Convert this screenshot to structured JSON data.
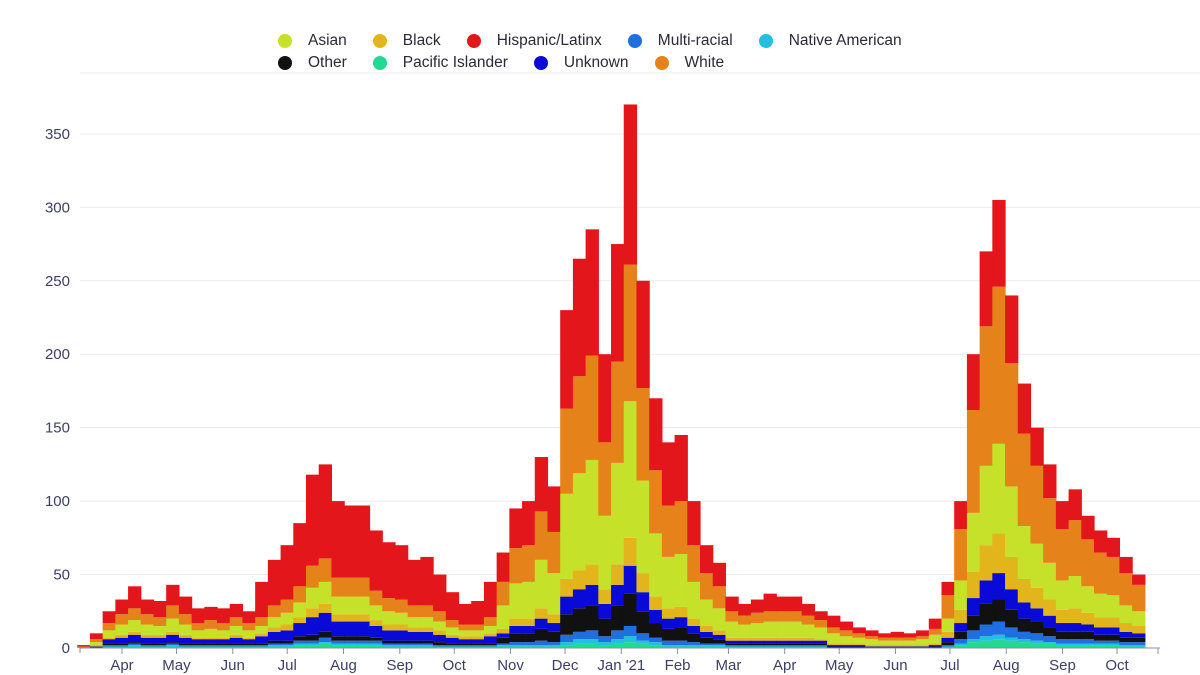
{
  "chart_data": {
    "type": "bar",
    "stacked": true,
    "title": "",
    "xlabel": "",
    "ylabel": "",
    "ylim": [
      0,
      380
    ],
    "yticks": [
      0,
      50,
      100,
      150,
      200,
      250,
      300,
      350
    ],
    "grid": true,
    "legend_position": "top-center",
    "x_start": "2020-03-11",
    "x_interval_days": 7,
    "xticks": [
      {
        "label": "Apr",
        "day": 21
      },
      {
        "label": "May",
        "day": 51
      },
      {
        "label": "Jun",
        "day": 82
      },
      {
        "label": "Jul",
        "day": 112
      },
      {
        "label": "Aug",
        "day": 143
      },
      {
        "label": "Sep",
        "day": 174
      },
      {
        "label": "Oct",
        "day": 204
      },
      {
        "label": "Nov",
        "day": 235
      },
      {
        "label": "Dec",
        "day": 265
      },
      {
        "label": "Jan '21",
        "day": 296
      },
      {
        "label": "Feb",
        "day": 327
      },
      {
        "label": "Mar",
        "day": 355
      },
      {
        "label": "Apr",
        "day": 386
      },
      {
        "label": "May",
        "day": 416
      },
      {
        "label": "Jun",
        "day": 447
      },
      {
        "label": "Jul",
        "day": 477
      },
      {
        "label": "Aug",
        "day": 508
      },
      {
        "label": "Sep",
        "day": 539
      },
      {
        "label": "Oct",
        "day": 569
      }
    ],
    "legend": [
      "Asian",
      "Black",
      "Hispanic/Latinx",
      "Multi-racial",
      "Native American",
      "Other",
      "Pacific Islander",
      "Unknown",
      "White"
    ],
    "series": [
      {
        "name": "Pacific Islander",
        "color": "#22d98f",
        "values": [
          0,
          0,
          1,
          1,
          1,
          1,
          1,
          1,
          1,
          1,
          1,
          1,
          1,
          1,
          1,
          1,
          1,
          2,
          2,
          3,
          2,
          2,
          2,
          2,
          1,
          1,
          1,
          1,
          1,
          1,
          1,
          1,
          1,
          1,
          1,
          1,
          1,
          1,
          2,
          3,
          3,
          2,
          3,
          4,
          3,
          2,
          1,
          1,
          1,
          1,
          1,
          1,
          1,
          1,
          1,
          1,
          1,
          1,
          1,
          0,
          0,
          0,
          0,
          0,
          0,
          0,
          0,
          0,
          1,
          2,
          4,
          5,
          6,
          5,
          4,
          3,
          3,
          2,
          2,
          2,
          2,
          2,
          1,
          1
        ]
      },
      {
        "name": "Native American",
        "color": "#21c0de",
        "values": [
          0,
          0,
          0,
          0,
          1,
          0,
          0,
          1,
          0,
          0,
          0,
          0,
          0,
          0,
          0,
          1,
          1,
          1,
          1,
          1,
          1,
          1,
          1,
          1,
          1,
          1,
          1,
          1,
          0,
          0,
          0,
          0,
          0,
          1,
          1,
          1,
          1,
          1,
          2,
          3,
          3,
          2,
          3,
          4,
          2,
          2,
          1,
          1,
          1,
          1,
          1,
          0,
          0,
          0,
          0,
          0,
          0,
          0,
          0,
          0,
          0,
          0,
          0,
          0,
          0,
          0,
          0,
          0,
          0,
          1,
          2,
          3,
          3,
          2,
          2,
          2,
          1,
          1,
          1,
          1,
          1,
          1,
          1,
          1
        ]
      },
      {
        "name": "Multi-racial",
        "color": "#1f6fe0",
        "values": [
          0,
          0,
          1,
          1,
          1,
          1,
          1,
          1,
          1,
          1,
          1,
          1,
          1,
          1,
          1,
          1,
          1,
          2,
          2,
          3,
          2,
          2,
          2,
          2,
          1,
          1,
          1,
          1,
          1,
          1,
          1,
          1,
          1,
          1,
          2,
          2,
          3,
          2,
          5,
          5,
          6,
          4,
          6,
          7,
          5,
          3,
          3,
          3,
          2,
          1,
          1,
          1,
          1,
          1,
          1,
          1,
          1,
          1,
          1,
          0,
          0,
          0,
          0,
          0,
          0,
          0,
          0,
          0,
          1,
          3,
          6,
          8,
          9,
          7,
          5,
          5,
          4,
          3,
          3,
          3,
          2,
          2,
          2,
          2
        ]
      },
      {
        "name": "Other",
        "color": "#111111",
        "values": [
          0,
          0,
          1,
          1,
          1,
          1,
          1,
          1,
          1,
          1,
          1,
          1,
          1,
          1,
          1,
          2,
          2,
          3,
          4,
          4,
          3,
          3,
          3,
          2,
          2,
          2,
          2,
          2,
          2,
          1,
          1,
          1,
          1,
          4,
          6,
          6,
          8,
          7,
          14,
          16,
          17,
          12,
          17,
          22,
          15,
          10,
          8,
          9,
          6,
          4,
          3,
          1,
          1,
          1,
          1,
          1,
          1,
          1,
          1,
          1,
          1,
          1,
          0,
          0,
          0,
          0,
          0,
          1,
          2,
          5,
          10,
          14,
          15,
          12,
          9,
          8,
          6,
          5,
          5,
          5,
          4,
          4,
          3,
          3
        ]
      },
      {
        "name": "Unknown",
        "color": "#0a0ad8",
        "values": [
          0,
          1,
          3,
          4,
          5,
          4,
          4,
          5,
          4,
          3,
          3,
          3,
          4,
          3,
          5,
          6,
          7,
          9,
          12,
          13,
          10,
          10,
          10,
          8,
          7,
          7,
          6,
          6,
          5,
          4,
          3,
          3,
          5,
          3,
          5,
          5,
          7,
          6,
          12,
          13,
          14,
          10,
          14,
          19,
          13,
          9,
          7,
          7,
          5,
          4,
          3,
          2,
          2,
          2,
          2,
          2,
          2,
          2,
          2,
          1,
          1,
          1,
          1,
          1,
          1,
          1,
          1,
          1,
          3,
          6,
          12,
          16,
          18,
          14,
          11,
          9,
          8,
          6,
          6,
          5,
          5,
          5,
          4,
          3
        ]
      },
      {
        "name": "Black",
        "color": "#e3b51d",
        "values": [
          0,
          1,
          1,
          2,
          2,
          2,
          2,
          2,
          2,
          1,
          1,
          1,
          2,
          1,
          2,
          3,
          4,
          4,
          6,
          6,
          5,
          5,
          5,
          4,
          4,
          4,
          3,
          3,
          3,
          2,
          2,
          2,
          2,
          3,
          5,
          5,
          7,
          6,
          12,
          13,
          14,
          10,
          14,
          19,
          13,
          9,
          7,
          7,
          5,
          4,
          3,
          2,
          2,
          2,
          2,
          2,
          2,
          2,
          1,
          1,
          1,
          1,
          1,
          1,
          1,
          1,
          1,
          1,
          4,
          9,
          18,
          24,
          27,
          22,
          16,
          14,
          11,
          9,
          10,
          8,
          7,
          7,
          6,
          5
        ]
      },
      {
        "name": "Asian",
        "color": "#c5e12a",
        "values": [
          0,
          2,
          5,
          7,
          8,
          7,
          6,
          9,
          7,
          5,
          6,
          5,
          6,
          5,
          5,
          7,
          8,
          10,
          14,
          15,
          12,
          12,
          12,
          10,
          9,
          8,
          7,
          7,
          6,
          5,
          4,
          4,
          5,
          16,
          24,
          25,
          33,
          28,
          58,
          66,
          71,
          50,
          69,
          93,
          63,
          43,
          35,
          36,
          25,
          18,
          15,
          11,
          9,
          10,
          11,
          11,
          11,
          9,
          8,
          7,
          5,
          4,
          4,
          3,
          3,
          3,
          4,
          6,
          9,
          20,
          40,
          54,
          61,
          48,
          36,
          30,
          25,
          20,
          22,
          18,
          16,
          15,
          12,
          10
        ]
      },
      {
        "name": "White",
        "color": "#e5831a",
        "values": [
          1,
          2,
          5,
          7,
          8,
          7,
          6,
          9,
          7,
          5,
          6,
          5,
          6,
          5,
          6,
          8,
          9,
          11,
          15,
          16,
          13,
          13,
          13,
          10,
          9,
          9,
          8,
          8,
          7,
          5,
          4,
          4,
          6,
          16,
          24,
          25,
          33,
          28,
          58,
          66,
          71,
          50,
          69,
          93,
          63,
          43,
          35,
          36,
          25,
          18,
          15,
          7,
          6,
          7,
          7,
          7,
          7,
          6,
          5,
          4,
          4,
          3,
          2,
          2,
          2,
          2,
          2,
          4,
          16,
          35,
          70,
          95,
          107,
          84,
          63,
          53,
          44,
          35,
          38,
          32,
          28,
          26,
          22,
          18
        ]
      },
      {
        "name": "Hispanic/Latinx",
        "color": "#e3161b",
        "values": [
          1,
          4,
          8,
          10,
          15,
          10,
          11,
          14,
          12,
          10,
          9,
          10,
          9,
          8,
          24,
          31,
          37,
          43,
          62,
          64,
          52,
          49,
          49,
          41,
          38,
          37,
          31,
          33,
          25,
          19,
          14,
          16,
          24,
          20,
          27,
          30,
          37,
          31,
          67,
          80,
          86,
          60,
          80,
          109,
          73,
          49,
          43,
          45,
          30,
          19,
          16,
          10,
          8,
          9,
          12,
          10,
          10,
          8,
          6,
          8,
          6,
          4,
          4,
          3,
          4,
          3,
          4,
          7,
          9,
          19,
          38,
          51,
          59,
          46,
          34,
          26,
          23,
          19,
          21,
          16,
          15,
          13,
          11,
          7
        ]
      }
    ]
  }
}
